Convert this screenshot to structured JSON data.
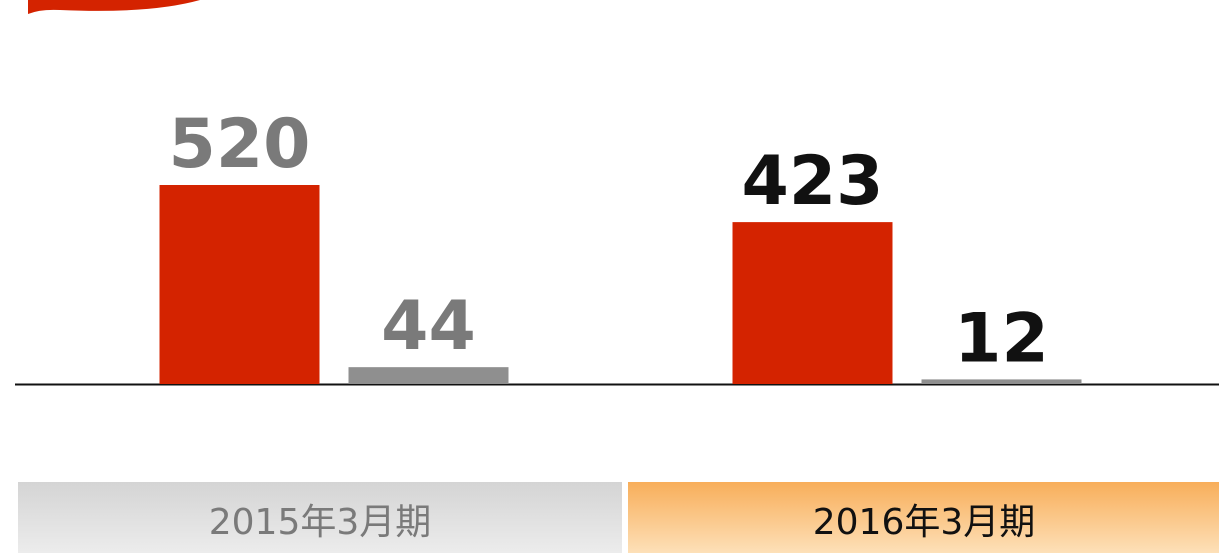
{
  "chart_data": {
    "type": "bar",
    "categories": [
      "2015年3月期",
      "2016年3月期"
    ],
    "series": [
      {
        "color": "#d42300",
        "values": [
          520,
          423
        ]
      },
      {
        "color": "#8f8f8f",
        "values": [
          44,
          12
        ]
      }
    ],
    "label_colors": [
      "#7a7a7a",
      "#111111"
    ]
  }
}
